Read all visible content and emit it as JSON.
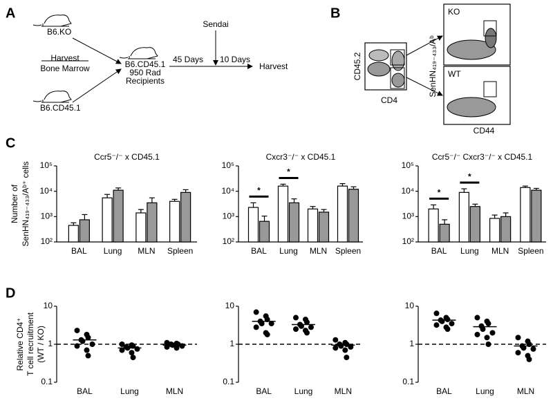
{
  "panel_labels": [
    "A",
    "B",
    "C",
    "D"
  ],
  "panel_a": {
    "donor_ko": "B6.KO",
    "harvest_step": [
      "Harvest",
      "Bone Marrow"
    ],
    "donor_wt": "B6.CD45.1",
    "recipient": [
      "B6.CD45.1",
      "950 Rad",
      "Recipients"
    ],
    "interval_1": "45 Days",
    "infection": "Sendai",
    "interval_2": "10 Days",
    "endpoint": "Harvest"
  },
  "panel_b": {
    "y_gate": "CD45.2",
    "x_gate": "CD4",
    "y_label": "SenHN₄₁₉₋₄₃₃/Aᵇ",
    "x_label": "CD44",
    "ko": "KO",
    "wt": "WT"
  },
  "chart_data": [
    {
      "type": "bar",
      "title": "Ccr5⁻/⁻ x CD45.1",
      "ylabel": [
        "Number of",
        "SenHN₄₁₉₋₄₃₃/Aᵇ⁺ cells"
      ],
      "categories": [
        "BAL",
        "Lung",
        "MLN",
        "Spleen"
      ],
      "series": [
        {
          "color": "#ffffff",
          "values": [
            450,
            5500,
            1400,
            4000
          ],
          "errors": [
            120,
            2000,
            500,
            800
          ]
        },
        {
          "color": "#999999",
          "values": [
            750,
            11000,
            3500,
            9000
          ],
          "errors": [
            450,
            2500,
            2000,
            2500
          ]
        }
      ],
      "log": true,
      "ylim": [
        100,
        100000
      ],
      "yticks": [
        {
          "value": 100,
          "label": "10²"
        },
        {
          "value": 1000,
          "label": "10³"
        },
        {
          "value": 10000,
          "label": "10⁴"
        },
        {
          "value": 100000,
          "label": "10⁵"
        }
      ]
    },
    {
      "type": "bar",
      "title": "Cxcr3⁻/⁻ x CD45.1",
      "categories": [
        "BAL",
        "Lung",
        "MLN",
        "Spleen"
      ],
      "series": [
        {
          "color": "#ffffff",
          "values": [
            2300,
            16000,
            2000,
            16000
          ],
          "errors": [
            1200,
            3000,
            500,
            4000
          ]
        },
        {
          "color": "#999999",
          "values": [
            650,
            3500,
            1500,
            12000
          ],
          "errors": [
            400,
            1500,
            400,
            3000
          ]
        }
      ],
      "significance": [
        "*",
        "*",
        null,
        null
      ],
      "log": true,
      "ylim": [
        100,
        100000
      ],
      "yticks": [
        {
          "value": 100,
          "label": "10²"
        },
        {
          "value": 1000,
          "label": "10³"
        },
        {
          "value": 10000,
          "label": "10⁴"
        },
        {
          "value": 100000,
          "label": "10⁵"
        }
      ]
    },
    {
      "type": "bar",
      "title": "Ccr5⁻/⁻ Cxcr3⁻/⁻ x CD45.1",
      "categories": [
        "BAL",
        "Lung",
        "MLN",
        "Spleen"
      ],
      "series": [
        {
          "color": "#ffffff",
          "values": [
            2000,
            9000,
            850,
            14000
          ],
          "errors": [
            900,
            3500,
            300,
            2000
          ]
        },
        {
          "color": "#999999",
          "values": [
            500,
            2500,
            1000,
            11000
          ],
          "errors": [
            250,
            600,
            400,
            2000
          ]
        }
      ],
      "significance": [
        "*",
        "*",
        null,
        null
      ],
      "log": true,
      "ylim": [
        100,
        100000
      ],
      "yticks": [
        {
          "value": 100,
          "label": "10²"
        },
        {
          "value": 1000,
          "label": "10³"
        },
        {
          "value": 10000,
          "label": "10⁴"
        },
        {
          "value": 100000,
          "label": "10⁵"
        }
      ]
    },
    {
      "type": "dot",
      "ylabel": [
        "Relative CD4⁺",
        "T cell recruitment",
        "(WT / KO)"
      ],
      "categories": [
        "BAL",
        "Lung",
        "MLN"
      ],
      "color": "#000000",
      "groups": [
        {
          "values": [
            2.3,
            1.8,
            1.5,
            1.3,
            1.2,
            1.0,
            0.9,
            0.7,
            0.5
          ],
          "mean": 1.3
        },
        {
          "values": [
            1.0,
            0.95,
            0.9,
            0.85,
            0.8,
            0.75,
            0.7,
            0.6,
            0.45
          ],
          "mean": 0.8
        },
        {
          "values": [
            1.1,
            1.05,
            1.0,
            1.0,
            0.95,
            0.9,
            0.85,
            0.8
          ],
          "mean": 0.95
        }
      ],
      "reference_line": 1,
      "log": true,
      "ylim": [
        0.1,
        10
      ],
      "yticks": [
        0.1,
        1,
        10
      ]
    },
    {
      "type": "dot",
      "categories": [
        "BAL",
        "Lung",
        "MLN"
      ],
      "color": "#000000",
      "groups": [
        {
          "values": [
            7,
            5.5,
            4.5,
            4,
            3.5,
            3.5,
            2.8,
            2,
            1.8
          ],
          "mean": 4
        },
        {
          "values": [
            5,
            4.5,
            3.8,
            3.3,
            3,
            2.8,
            2.5,
            2.3,
            2
          ],
          "mean": 3.3
        },
        {
          "values": [
            1.3,
            1.1,
            1,
            1,
            0.9,
            0.85,
            0.8,
            0.7,
            0.45
          ],
          "mean": 0.95
        }
      ],
      "reference_line": 1,
      "log": true,
      "ylim": [
        0.1,
        10
      ],
      "yticks": [
        0.1,
        1,
        10
      ]
    },
    {
      "type": "dot",
      "categories": [
        "BAL",
        "Lung",
        "MLN"
      ],
      "color": "#000000",
      "groups": [
        {
          "values": [
            6.5,
            5,
            4.5,
            4.3,
            4,
            3.5,
            3.2,
            2.8,
            2.5
          ],
          "mean": 4.3
        },
        {
          "values": [
            5,
            4,
            3.5,
            3,
            2.5,
            2,
            1.8,
            1.5,
            1
          ],
          "mean": 2.9
        },
        {
          "values": [
            1.5,
            1.2,
            1,
            0.9,
            0.8,
            0.75,
            0.6,
            0.5,
            0.4
          ],
          "mean": 0.9
        }
      ],
      "reference_line": 1,
      "log": true,
      "ylim": [
        0.1,
        10
      ],
      "yticks": [
        0.1,
        1,
        10
      ]
    }
  ]
}
